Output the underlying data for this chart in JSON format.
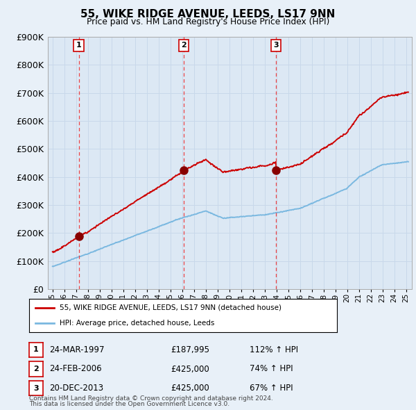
{
  "title": "55, WIKE RIDGE AVENUE, LEEDS, LS17 9NN",
  "subtitle": "Price paid vs. HM Land Registry's House Price Index (HPI)",
  "sale_dates_float": [
    1997.23,
    2006.14,
    2013.97
  ],
  "sale_prices": [
    187995,
    425000,
    425000
  ],
  "sale_labels": [
    "1",
    "2",
    "3"
  ],
  "legend_line1": "55, WIKE RIDGE AVENUE, LEEDS, LS17 9NN (detached house)",
  "legend_line2": "HPI: Average price, detached house, Leeds",
  "table_rows": [
    [
      "1",
      "24-MAR-1997",
      "£187,995",
      "112% ↑ HPI"
    ],
    [
      "2",
      "24-FEB-2006",
      "£425,000",
      "74% ↑ HPI"
    ],
    [
      "3",
      "20-DEC-2013",
      "£425,000",
      "67% ↑ HPI"
    ]
  ],
  "footer1": "Contains HM Land Registry data © Crown copyright and database right 2024.",
  "footer2": "This data is licensed under the Open Government Licence v3.0.",
  "hpi_color": "#7ab8e0",
  "price_color": "#cc0000",
  "sale_dot_color": "#880000",
  "dashed_line_color": "#ee3333",
  "grid_color": "#c8d8ea",
  "bg_color": "#e8f0f8",
  "plot_bg": "#dce8f4",
  "ylim": [
    0,
    900000
  ],
  "yticks": [
    0,
    100000,
    200000,
    300000,
    400000,
    500000,
    600000,
    700000,
    800000,
    900000
  ],
  "xstart": 1995,
  "xend": 2025
}
